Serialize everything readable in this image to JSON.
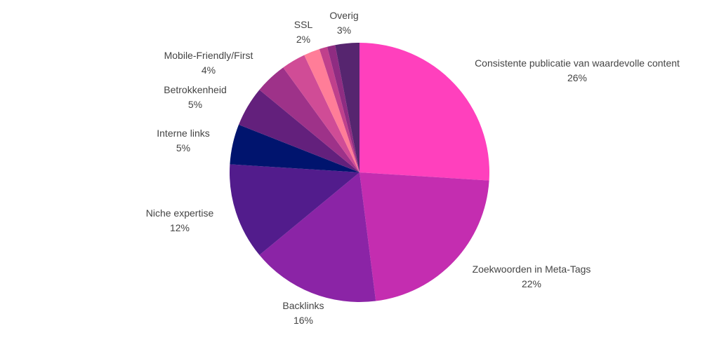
{
  "chart_data": {
    "type": "pie",
    "start_angle_deg": 0,
    "direction": "clockwise",
    "slices": [
      {
        "label": "Consistente publicatie van waardevolle content",
        "value": 26,
        "pct_label": "26%",
        "color": "#ff40bd"
      },
      {
        "label": "Zoekwoorden in Meta-Tags",
        "value": 22,
        "pct_label": "22%",
        "color": "#c42db0"
      },
      {
        "label": "Backlinks",
        "value": 16,
        "pct_label": "16%",
        "color": "#8b24a6"
      },
      {
        "label": "Niche expertise",
        "value": 12,
        "pct_label": "12%",
        "color": "#521c8c"
      },
      {
        "label": "Interne links",
        "value": 5,
        "pct_label": "5%",
        "color": "#00146e"
      },
      {
        "label": "Betrokkenheid",
        "value": 5,
        "pct_label": "5%",
        "color": "#63207c"
      },
      {
        "label": "Mobile-Friendly/First",
        "value": 4,
        "pct_label": "4%",
        "color": "#9e3289"
      },
      {
        "label": "",
        "value": 3,
        "pct_label": "",
        "color": "#d04c96"
      },
      {
        "label": "SSL",
        "value": 2,
        "pct_label": "2%",
        "color": "#ff7d98"
      },
      {
        "label": "",
        "value": 1,
        "pct_label": "",
        "color": "#c0408c"
      },
      {
        "label": "",
        "value": 1,
        "pct_label": "",
        "color": "#8f2c82"
      },
      {
        "label": "Overig",
        "value": 3,
        "pct_label": "3%",
        "color": "#56256f"
      }
    ]
  }
}
